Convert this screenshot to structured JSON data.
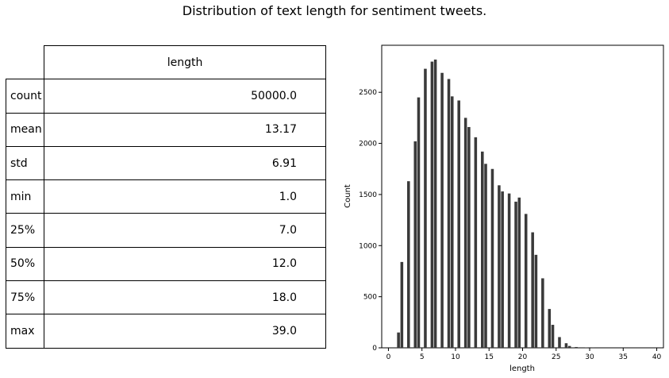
{
  "figure": {
    "title": "Distribution of text length for sentiment tweets."
  },
  "table": {
    "column_header": "length",
    "rows": [
      {
        "label": "count",
        "value": "50000.0"
      },
      {
        "label": "mean",
        "value": "13.17"
      },
      {
        "label": "std",
        "value": "6.91"
      },
      {
        "label": "min",
        "value": "1.0"
      },
      {
        "label": "25%",
        "value": "7.0"
      },
      {
        "label": "50%",
        "value": "12.0"
      },
      {
        "label": "75%",
        "value": "18.0"
      },
      {
        "label": "max",
        "value": "39.0"
      }
    ]
  },
  "chart_data": {
    "type": "bar",
    "title": "",
    "xlabel": "length",
    "ylabel": "Count",
    "xlim": [
      -1,
      41
    ],
    "ylim": [
      0,
      2960
    ],
    "xticks": [
      0,
      5,
      10,
      15,
      20,
      25,
      30,
      35,
      40
    ],
    "yticks": [
      0,
      500,
      1000,
      1500,
      2000,
      2500
    ],
    "bar_color": "#3a3a3a",
    "grid": false,
    "bins": [
      {
        "x": 1.5,
        "y": 150
      },
      {
        "x": 2.0,
        "y": 840
      },
      {
        "x": 3.0,
        "y": 1630
      },
      {
        "x": 4.0,
        "y": 2020
      },
      {
        "x": 4.5,
        "y": 2450
      },
      {
        "x": 5.5,
        "y": 2730
      },
      {
        "x": 6.5,
        "y": 2800
      },
      {
        "x": 7.0,
        "y": 2820
      },
      {
        "x": 8.0,
        "y": 2690
      },
      {
        "x": 9.0,
        "y": 2630
      },
      {
        "x": 9.5,
        "y": 2460
      },
      {
        "x": 10.5,
        "y": 2420
      },
      {
        "x": 11.5,
        "y": 2250
      },
      {
        "x": 12.0,
        "y": 2160
      },
      {
        "x": 13.0,
        "y": 2060
      },
      {
        "x": 14.0,
        "y": 1920
      },
      {
        "x": 14.5,
        "y": 1800
      },
      {
        "x": 15.5,
        "y": 1750
      },
      {
        "x": 16.5,
        "y": 1590
      },
      {
        "x": 17.0,
        "y": 1530
      },
      {
        "x": 18.0,
        "y": 1510
      },
      {
        "x": 19.0,
        "y": 1430
      },
      {
        "x": 19.5,
        "y": 1470
      },
      {
        "x": 20.5,
        "y": 1310
      },
      {
        "x": 21.5,
        "y": 1130
      },
      {
        "x": 22.0,
        "y": 910
      },
      {
        "x": 23.0,
        "y": 680
      },
      {
        "x": 24.0,
        "y": 380
      },
      {
        "x": 24.5,
        "y": 225
      },
      {
        "x": 25.5,
        "y": 105
      },
      {
        "x": 26.5,
        "y": 45
      },
      {
        "x": 27.0,
        "y": 18
      },
      {
        "x": 28.0,
        "y": 8
      },
      {
        "x": 29.0,
        "y": 5
      },
      {
        "x": 29.5,
        "y": 2
      },
      {
        "x": 30.5,
        "y": 1
      }
    ]
  }
}
